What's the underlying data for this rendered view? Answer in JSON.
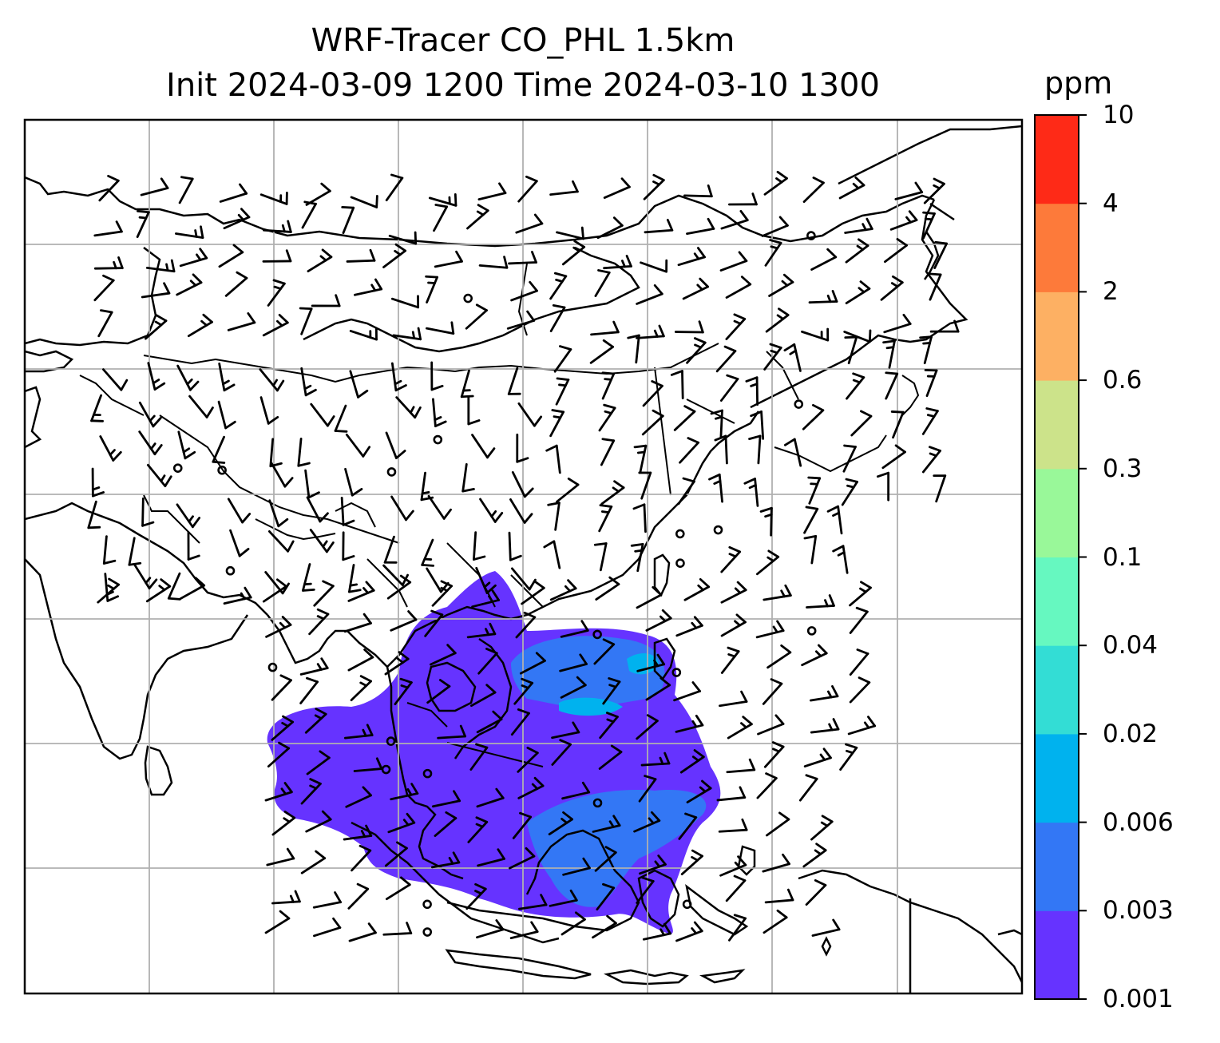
{
  "title": {
    "line1": "WRF-Tracer CO_PHL 1.5km",
    "line2": "Init 2024-03-09 1200 Time 2024-03-10 1300"
  },
  "colorbar": {
    "units": "ppm",
    "levels": [
      "0.001",
      "0.003",
      "0.006",
      "0.02",
      "0.04",
      "0.1",
      "0.3",
      "0.6",
      "2",
      "4",
      "10"
    ],
    "colors": [
      "#6633ff",
      "#3377f5",
      "#00b2ee",
      "#33ddd5",
      "#66f8c0",
      "#99f899",
      "#cce38a",
      "#fdb063",
      "#fd7a3a",
      "#fe2a17"
    ]
  },
  "map": {
    "field": "CO tracer concentration with wind barbs",
    "plume_colors": {
      "low": "#6633ff",
      "mid": "#3377f5",
      "high": "#00b2ee"
    }
  }
}
